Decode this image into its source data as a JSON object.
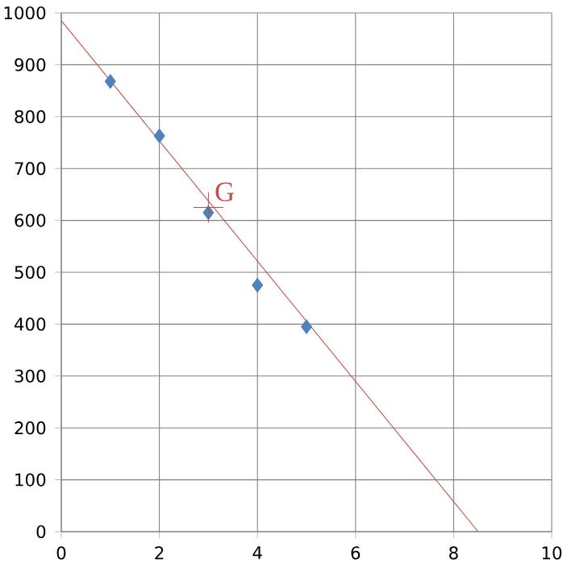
{
  "chart_data": {
    "type": "scatter",
    "xlim": [
      0,
      10
    ],
    "ylim": [
      0,
      1000
    ],
    "xticks": [
      0,
      2,
      4,
      6,
      8,
      10
    ],
    "yticks": [
      0,
      100,
      200,
      300,
      400,
      500,
      600,
      700,
      800,
      900,
      1000
    ],
    "grid": true,
    "series": [
      {
        "color": "#4f81bd",
        "marker": "diamond",
        "x": [
          1,
          2,
          3,
          4,
          5
        ],
        "values": [
          868,
          763,
          615,
          475,
          395
        ]
      },
      {
        "type": "line",
        "color": "#c0504d",
        "marker": "none",
        "x": [
          0,
          8.5
        ],
        "values": [
          985,
          0
        ]
      },
      {
        "color": "#c0504d",
        "marker": "cross",
        "x": [
          3
        ],
        "values": [
          625
        ]
      }
    ],
    "annotations": [
      {
        "text": "G",
        "x": 3,
        "y": 625
      }
    ]
  }
}
